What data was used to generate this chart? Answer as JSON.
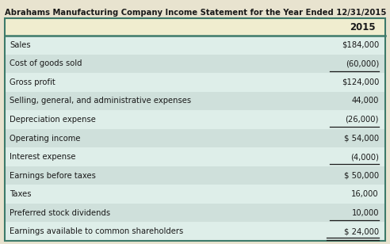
{
  "title": "Abrahams Manufacturing Company Income Statement for the Year Ended 12/31/2015",
  "header": "2015",
  "rows": [
    {
      "label": "Sales",
      "value": "$184,000",
      "underline": false,
      "double_underline": false
    },
    {
      "label": "Cost of goods sold",
      "value": "(60,000)",
      "underline": true,
      "double_underline": false
    },
    {
      "label": "Gross profit",
      "value": "$124,000",
      "underline": false,
      "double_underline": false
    },
    {
      "label": "Selling, general, and administrative expenses",
      "value": "44,000",
      "underline": false,
      "double_underline": false
    },
    {
      "label": "Depreciation expense",
      "value": "(26,000)",
      "underline": true,
      "double_underline": false
    },
    {
      "label": "Operating income",
      "value": "$ 54,000",
      "underline": false,
      "double_underline": false
    },
    {
      "label": "Interest expense",
      "value": "(4,000)",
      "underline": true,
      "double_underline": false
    },
    {
      "label": "Earnings before taxes",
      "value": "$ 50,000",
      "underline": false,
      "double_underline": false
    },
    {
      "label": "Taxes",
      "value": "16,000",
      "underline": false,
      "double_underline": false
    },
    {
      "label": "Preferred stock dividends",
      "value": "10,000",
      "underline": true,
      "double_underline": false
    },
    {
      "label": "Earnings available to common shareholders",
      "value": "$ 24,000",
      "underline": false,
      "double_underline": true
    }
  ],
  "bg_color": "#e8e3cf",
  "header_bg": "#f0edcf",
  "row_bg_odd": "#cfe0db",
  "row_bg_even": "#deeee9",
  "border_color": "#3d7a6a",
  "title_color": "#1a1a1a",
  "text_color": "#1a1a1a",
  "title_fontsize": 7.2,
  "header_fontsize": 8.5,
  "row_fontsize": 7.2
}
